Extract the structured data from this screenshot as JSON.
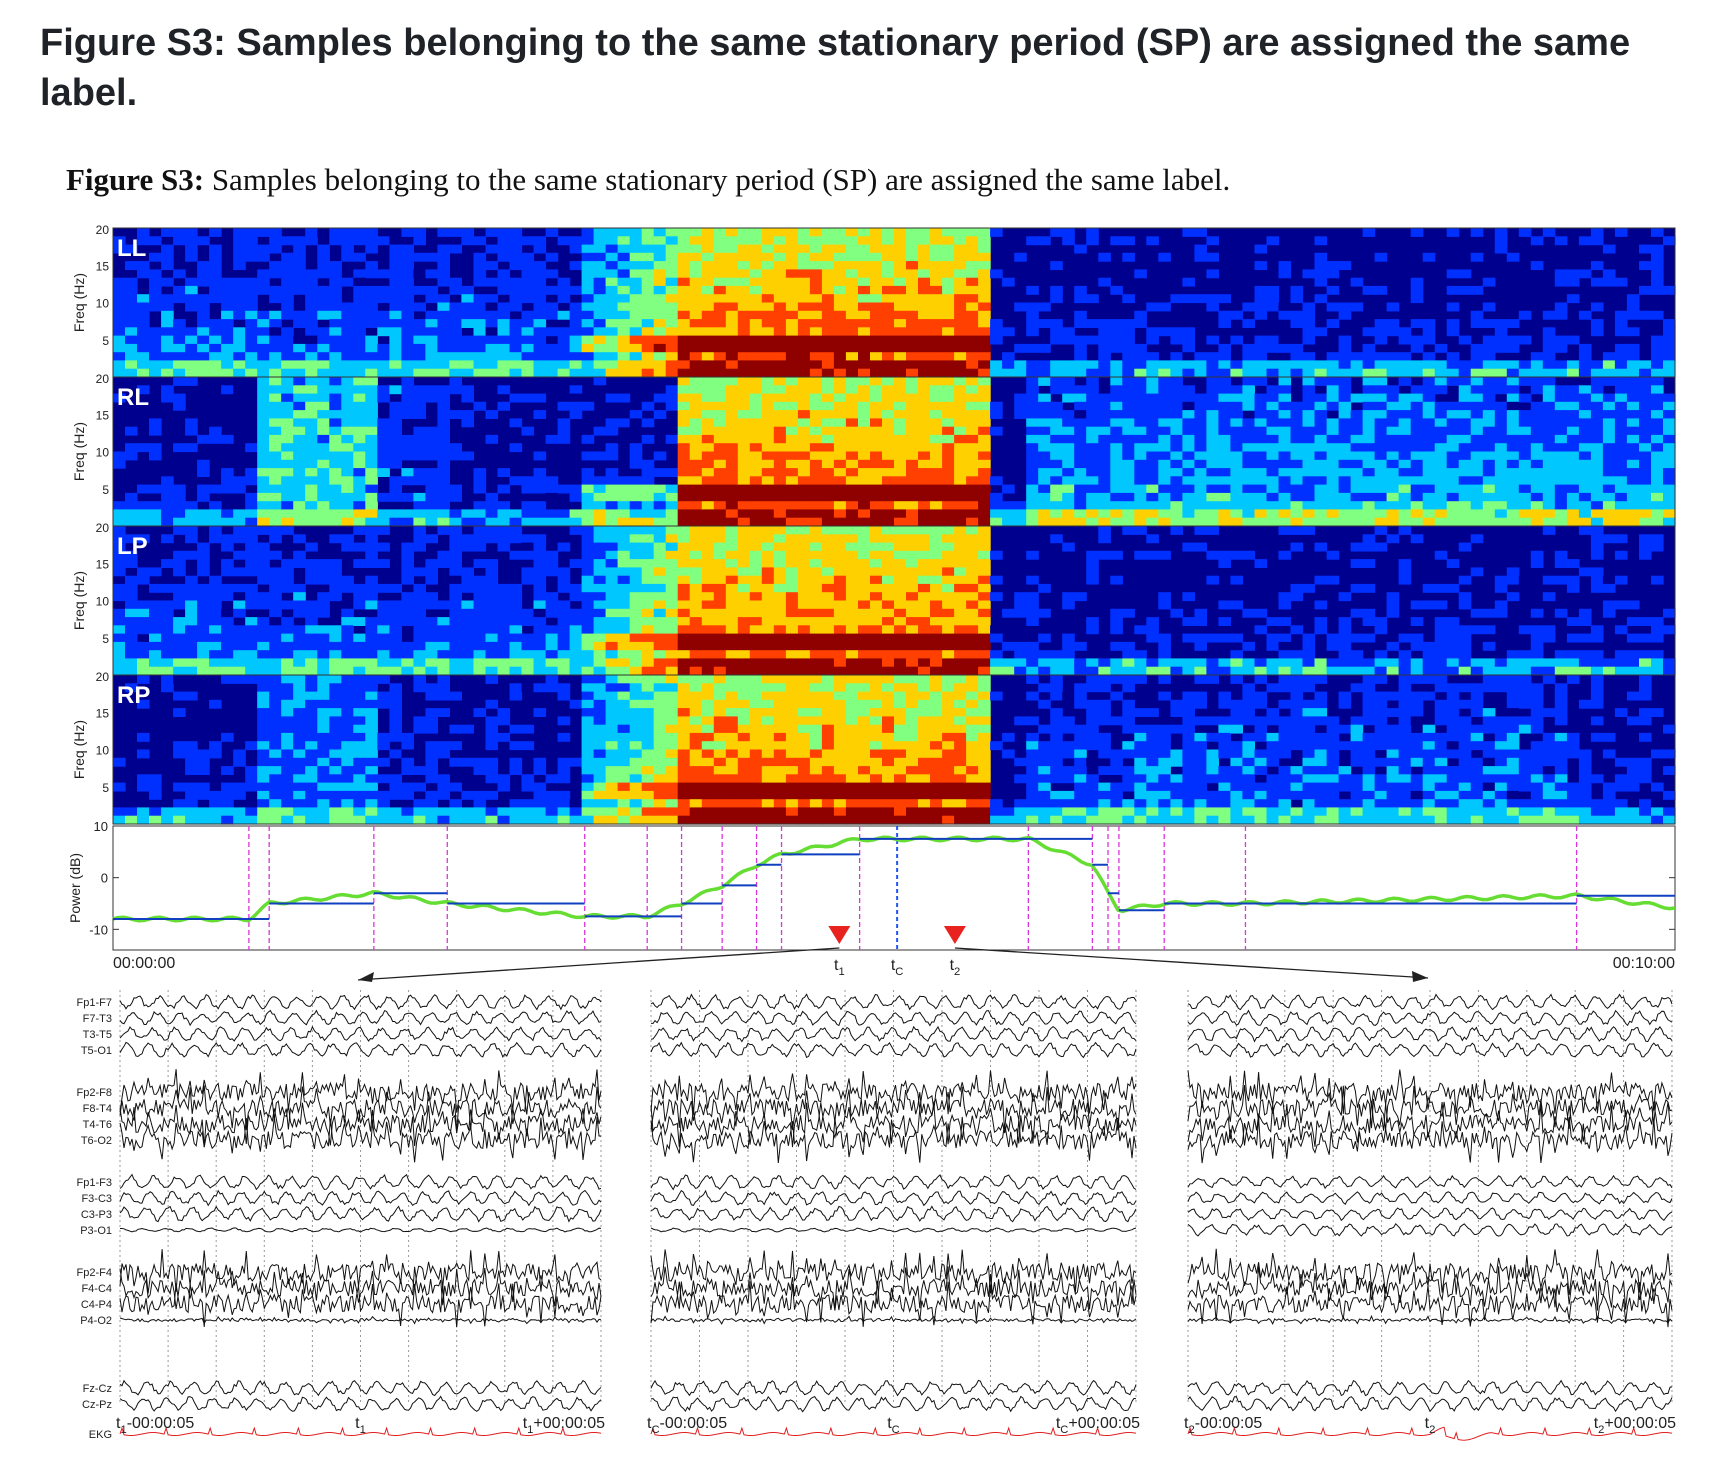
{
  "heading": "Figure S3: Samples belonging to the same stationary period (SP) are assigned the same label.",
  "caption": {
    "label": "Figure S3:",
    "text": "Samples belonging to the same stationary period (SP) are assigned the same label."
  },
  "spectrograms": {
    "ylabel": "Freq (Hz)",
    "yticks": [
      "20",
      "15",
      "10",
      "5"
    ],
    "panels": [
      "LL",
      "RL",
      "LP",
      "RP"
    ],
    "colormap": [
      "#00008f",
      "#0030ff",
      "#00c8ff",
      "#80ff80",
      "#ffd000",
      "#ff4000",
      "#8f0000"
    ]
  },
  "power": {
    "ylabel": "Power (dB)",
    "yticks": [
      "10",
      "0",
      "-10"
    ],
    "ylim": [
      -14,
      10
    ],
    "x_start": "00:00:00",
    "x_end": "00:10:00",
    "colors": {
      "smoothed": "#66dd33",
      "segment": "#1040c0",
      "boundary": "#dd33dd",
      "change": "#2255ee"
    },
    "markers": [
      {
        "sub": "1",
        "main": "t"
      },
      {
        "sub": "C",
        "main": "t"
      },
      {
        "sub": "2",
        "main": "t"
      }
    ]
  },
  "chart_data": {
    "type": "line",
    "xlabel": "",
    "ylabel": "Power (dB)",
    "x_range": [
      "00:00:00",
      "00:10:00"
    ],
    "ylim": [
      -14,
      10
    ],
    "series": [
      {
        "x_fraction_of_window": [
          0,
          0.087,
          0.1,
          0.167,
          0.214,
          0.302,
          0.342,
          0.364,
          0.39,
          0.412,
          0.428,
          0.478,
          0.586,
          0.627,
          0.637,
          0.644,
          0.673,
          0.725,
          0.937,
          1
        ],
        "values": [
          -8,
          -8,
          -5,
          -3,
          -5,
          -7.5,
          -7.5,
          -5,
          -1.5,
          2.5,
          4.5,
          7.5,
          7.5,
          2.5,
          -3,
          -6.3,
          -5,
          -5,
          -3.5,
          -5.8
        ]
      }
    ],
    "segment_boundaries_fraction": [
      0.087,
      0.1,
      0.167,
      0.214,
      0.302,
      0.342,
      0.364,
      0.39,
      0.412,
      0.428,
      0.478,
      0.586,
      0.627,
      0.637,
      0.644,
      0.673,
      0.725,
      0.937
    ],
    "change_point_fraction": 0.502
  },
  "eeg": {
    "channels": [
      "Fp1-F7",
      "F7-T3",
      "T3-T5",
      "T5-O1",
      "Fp2-F8",
      "F8-T4",
      "T4-T6",
      "T6-O2",
      "Fp1-F3",
      "F3-C3",
      "C3-P3",
      "P3-O1",
      "Fp2-F4",
      "F4-C4",
      "C4-P4",
      "P4-O2",
      "Fz-Cz",
      "Cz-Pz",
      "EKG"
    ],
    "windows": [
      {
        "left": {
          "main": "t",
          "sub": "1",
          "suffix": "-00:00:05"
        },
        "mid": {
          "main": "t",
          "sub": "1"
        },
        "right": {
          "main": "t",
          "sub": "1",
          "suffix": "+00:00:05"
        }
      },
      {
        "left": {
          "main": "t",
          "sub": "C",
          "suffix": "-00:00:05"
        },
        "mid": {
          "main": "t",
          "sub": "C"
        },
        "right": {
          "main": "t",
          "sub": "C",
          "suffix": "+00:00:05"
        }
      },
      {
        "left": {
          "main": "t",
          "sub": "2",
          "suffix": "-00:00:05"
        },
        "mid": {
          "main": "t",
          "sub": "2"
        },
        "right": {
          "main": "t",
          "sub": "2",
          "suffix": "+00:00:05"
        }
      }
    ],
    "trace_color": "#111111",
    "ekg_color": "#e02020"
  }
}
